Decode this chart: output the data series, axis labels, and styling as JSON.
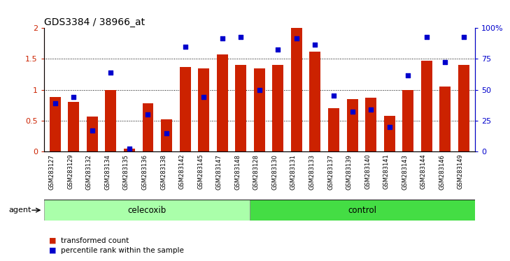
{
  "title": "GDS3384 / 38966_at",
  "samples": [
    "GSM283127",
    "GSM283129",
    "GSM283132",
    "GSM283134",
    "GSM283135",
    "GSM283136",
    "GSM283138",
    "GSM283142",
    "GSM283145",
    "GSM283147",
    "GSM283148",
    "GSM283128",
    "GSM283130",
    "GSM283131",
    "GSM283133",
    "GSM283137",
    "GSM283139",
    "GSM283140",
    "GSM283141",
    "GSM283143",
    "GSM283144",
    "GSM283146",
    "GSM283149"
  ],
  "transformed_count": [
    0.88,
    0.8,
    0.57,
    1.0,
    0.05,
    0.78,
    0.52,
    1.37,
    1.35,
    1.57,
    1.4,
    1.35,
    1.4,
    2.0,
    1.62,
    0.7,
    0.85,
    0.87,
    0.58,
    1.0,
    1.47,
    1.05,
    1.4
  ],
  "percentile_rank": [
    0.78,
    0.88,
    0.34,
    1.28,
    0.05,
    0.6,
    0.3,
    1.7,
    0.88,
    1.83,
    1.85,
    1.0,
    1.65,
    1.83,
    1.73,
    0.9,
    0.65,
    0.68,
    0.4,
    1.23,
    1.85,
    1.45,
    1.85
  ],
  "group_labels": [
    "celecoxib",
    "control"
  ],
  "n_celecoxib": 11,
  "n_control": 12,
  "bar_color": "#CC2200",
  "dot_color": "#0000CC",
  "bg_plot": "#FFFFFF",
  "bg_group_celecoxib": "#AAFFAA",
  "bg_group_control": "#44DD44",
  "yticks_left": [
    0,
    0.5,
    1.0,
    1.5,
    2.0
  ],
  "ytick_labels_left": [
    "0",
    "0.5",
    "1",
    "1.5",
    "2"
  ],
  "ytick_labels_right": [
    "0",
    "25",
    "50",
    "75",
    "100%"
  ],
  "legend_tc": "transformed count",
  "legend_pr": "percentile rank within the sample",
  "left_axis_color": "#CC2200",
  "right_axis_color": "#0000CC"
}
